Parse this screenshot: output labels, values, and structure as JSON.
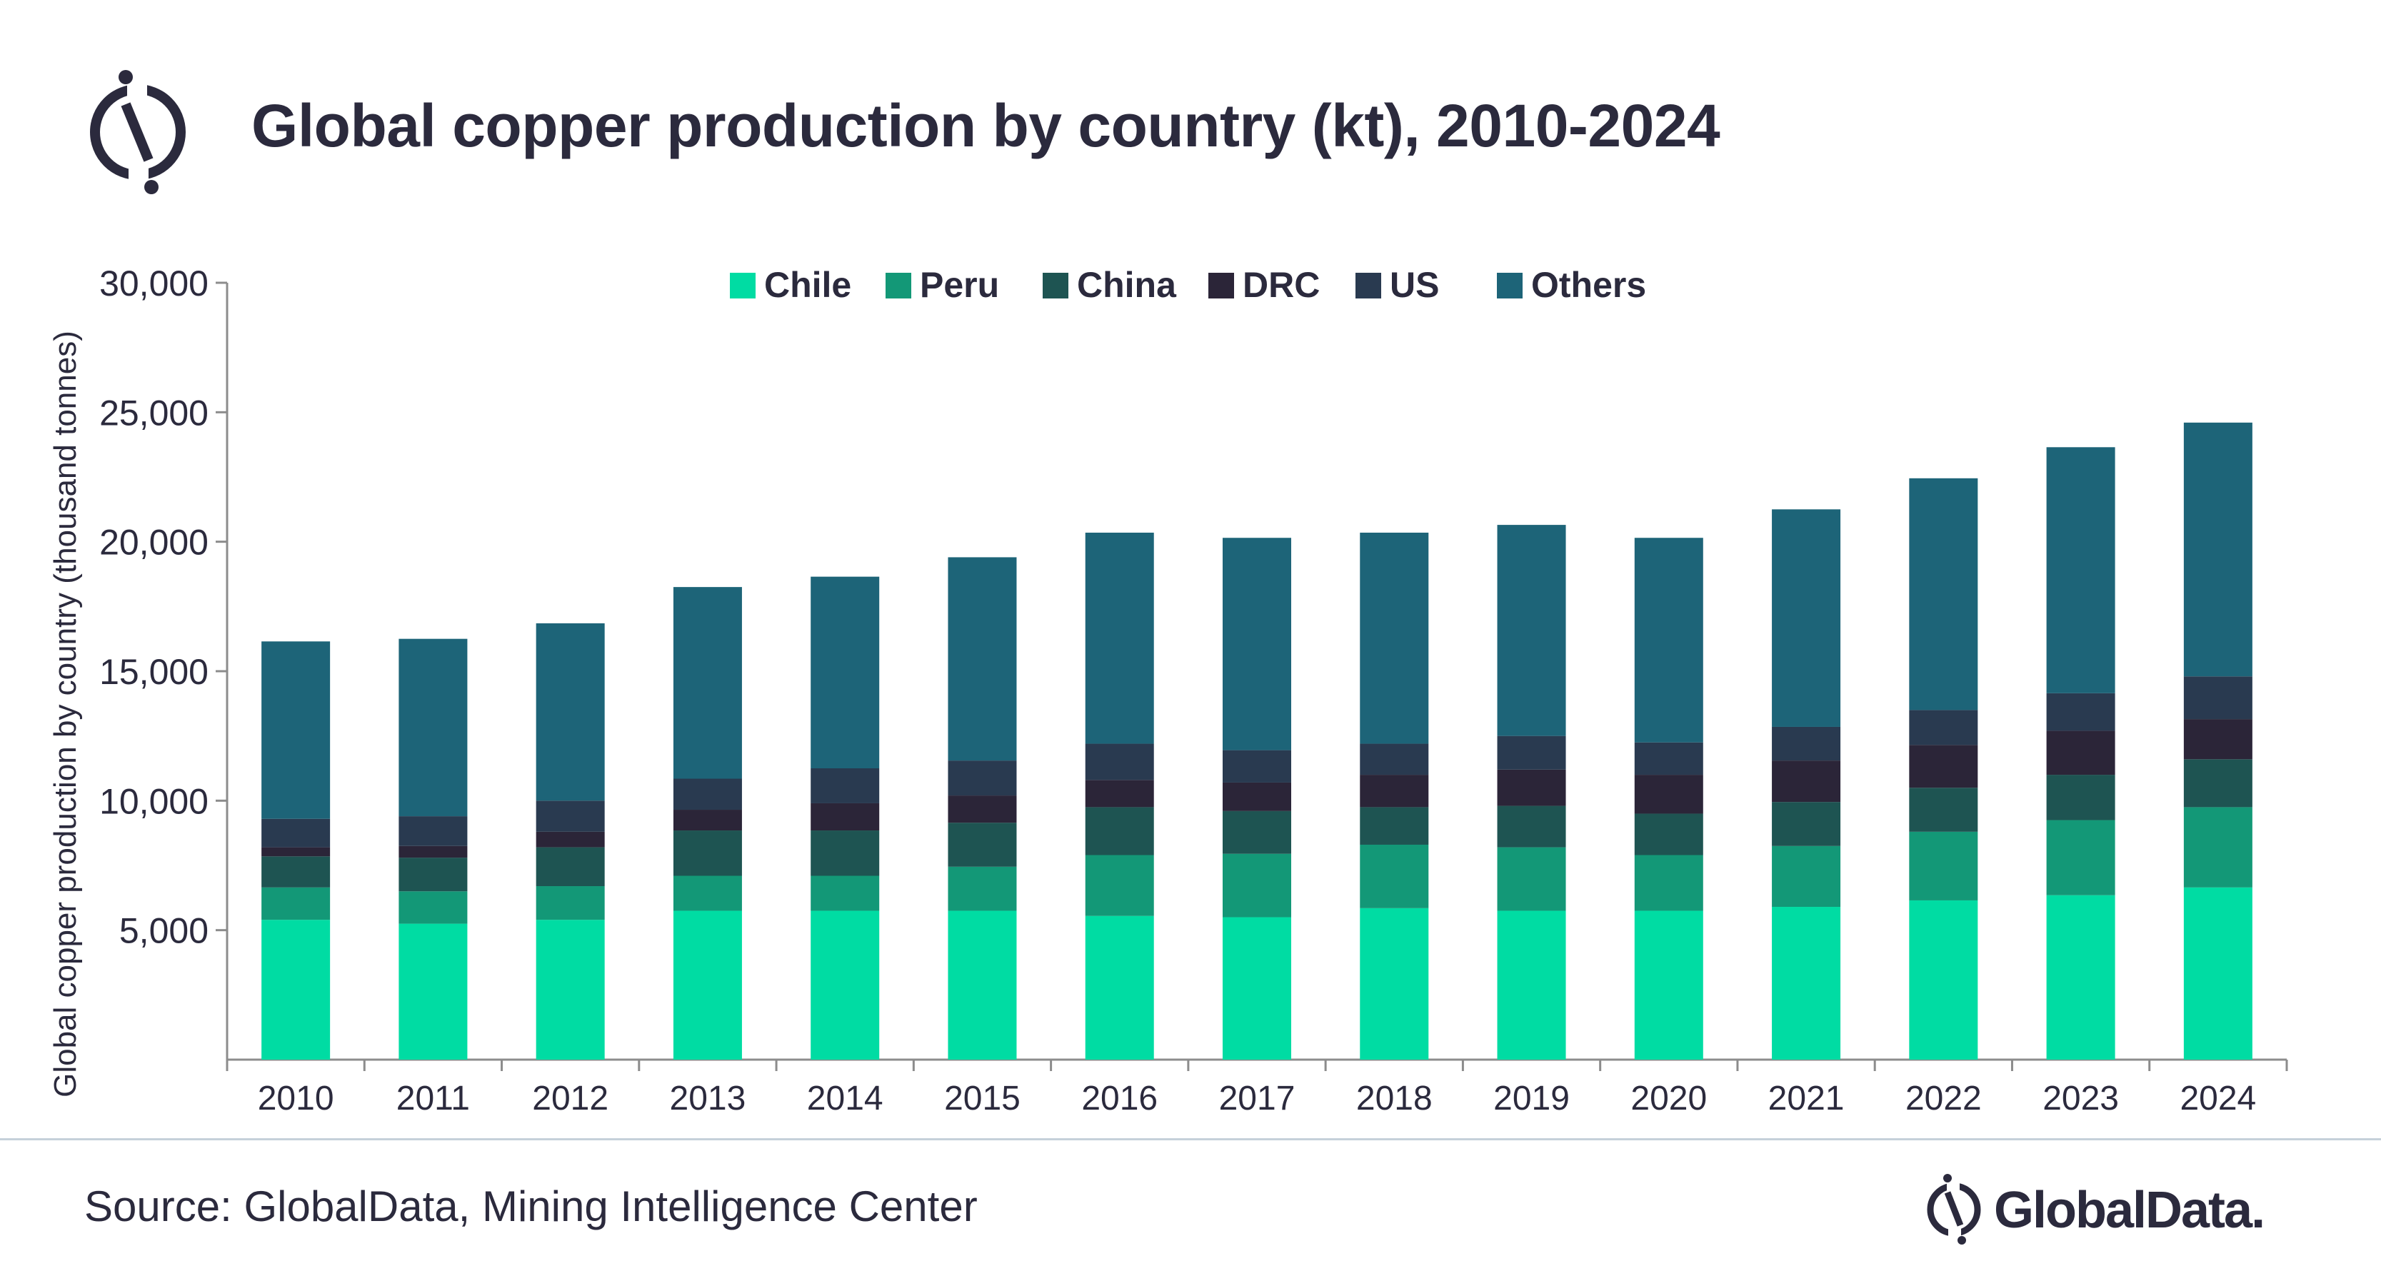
{
  "title": "Global copper production by country (kt), 2010-2024",
  "source": "Source: GlobalData, Mining Intelligence Center",
  "brand_name": "GlobalData.",
  "logo_icon": "globaldata-logo-icon",
  "colors": {
    "Chile": "#00dca3",
    "Peru": "#139877",
    "China": "#1e5452",
    "DRC": "#2b2538",
    "US": "#293a50",
    "Others": "#1d6478",
    "text": "#2b2a3d",
    "axis": "#8c8c8c"
  },
  "chart_data": {
    "type": "bar",
    "stacked": true,
    "title": "Global copper production by country (kt), 2010-2024",
    "xlabel": "",
    "ylabel": "Global copper production by country (thousand tonnes)",
    "ylim": [
      0,
      30000
    ],
    "yticks": [
      "5,000",
      "10,000",
      "15,000",
      "20,000",
      "25,000",
      "30,000"
    ],
    "ytick_values": [
      5000,
      10000,
      15000,
      20000,
      25000,
      30000
    ],
    "legend_position": "top",
    "grid": false,
    "categories": [
      "2010",
      "2011",
      "2012",
      "2013",
      "2014",
      "2015",
      "2016",
      "2017",
      "2018",
      "2019",
      "2020",
      "2021",
      "2022",
      "2023",
      "2024"
    ],
    "series": [
      {
        "name": "Chile",
        "values": [
          5400,
          5250,
          5400,
          5750,
          5750,
          5750,
          5550,
          5500,
          5850,
          5750,
          5750,
          5900,
          6150,
          6350,
          6650
        ]
      },
      {
        "name": "Peru",
        "values": [
          1250,
          1250,
          1300,
          1350,
          1350,
          1700,
          2350,
          2450,
          2450,
          2450,
          2150,
          2350,
          2650,
          2900,
          3100
        ]
      },
      {
        "name": "China",
        "values": [
          1200,
          1300,
          1500,
          1750,
          1750,
          1700,
          1850,
          1650,
          1450,
          1600,
          1600,
          1700,
          1700,
          1750,
          1850
        ]
      },
      {
        "name": "DRC",
        "values": [
          350,
          450,
          600,
          800,
          1050,
          1050,
          1050,
          1100,
          1250,
          1400,
          1500,
          1600,
          1650,
          1700,
          1550
        ]
      },
      {
        "name": "US",
        "values": [
          1100,
          1150,
          1200,
          1200,
          1350,
          1350,
          1400,
          1250,
          1200,
          1300,
          1250,
          1300,
          1350,
          1450,
          1650
        ]
      },
      {
        "name": "Others",
        "values": [
          6850,
          6850,
          6850,
          7400,
          7400,
          7850,
          8150,
          8200,
          8150,
          8150,
          7900,
          8400,
          8950,
          9500,
          9800
        ]
      }
    ]
  }
}
